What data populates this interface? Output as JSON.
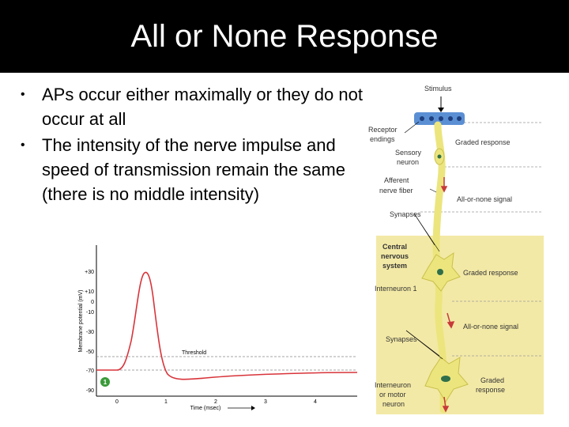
{
  "slide": {
    "title": "All or None Response",
    "bullets": [
      "APs occur either maximally or they do not occur at all",
      "The intensity of the nerve impulse and speed of transmission remain the same (there is no middle intensity)"
    ]
  },
  "graph": {
    "y_label": "Membrane potential (mV)",
    "x_label": "Time (msec)",
    "y_ticks": [
      "+30",
      "+10",
      "0",
      "-10",
      "-30",
      "-50",
      "-70",
      "-90"
    ],
    "x_ticks": [
      "0",
      "1",
      "2",
      "3",
      "4"
    ],
    "threshold_label": "Threshold",
    "marker": "1",
    "colors": {
      "trace": "#d8343a",
      "dashes": "#888888",
      "marker": "#3a9a3a"
    }
  },
  "diagram": {
    "left_labels": {
      "stimulus": "Stimulus",
      "receptor1": "Receptor",
      "receptor2": "endings",
      "sensory1": "Sensory",
      "sensory2": "neuron",
      "afferent1": "Afferent",
      "afferent2": "nerve fiber",
      "synapses1": "Synapses",
      "cns1": "Central",
      "cns2": "nervous",
      "cns3": "system",
      "interneuron1": "Interneuron 1",
      "synapses2": "Synapses",
      "motor1": "Interneuron",
      "motor2": "or motor",
      "motor3": "neuron"
    },
    "right_labels": {
      "graded1": "Graded response",
      "allornone1": "All-or-none signal",
      "graded2": "Graded response",
      "allornone2": "All-or-none signal",
      "graded3a": "Graded",
      "graded3b": "response"
    },
    "colors": {
      "cns_bg": "#f3e9a6",
      "neuron": "#ece57e",
      "nucleus": "#2f6f4a",
      "receptor": "#5b8fd4"
    }
  }
}
